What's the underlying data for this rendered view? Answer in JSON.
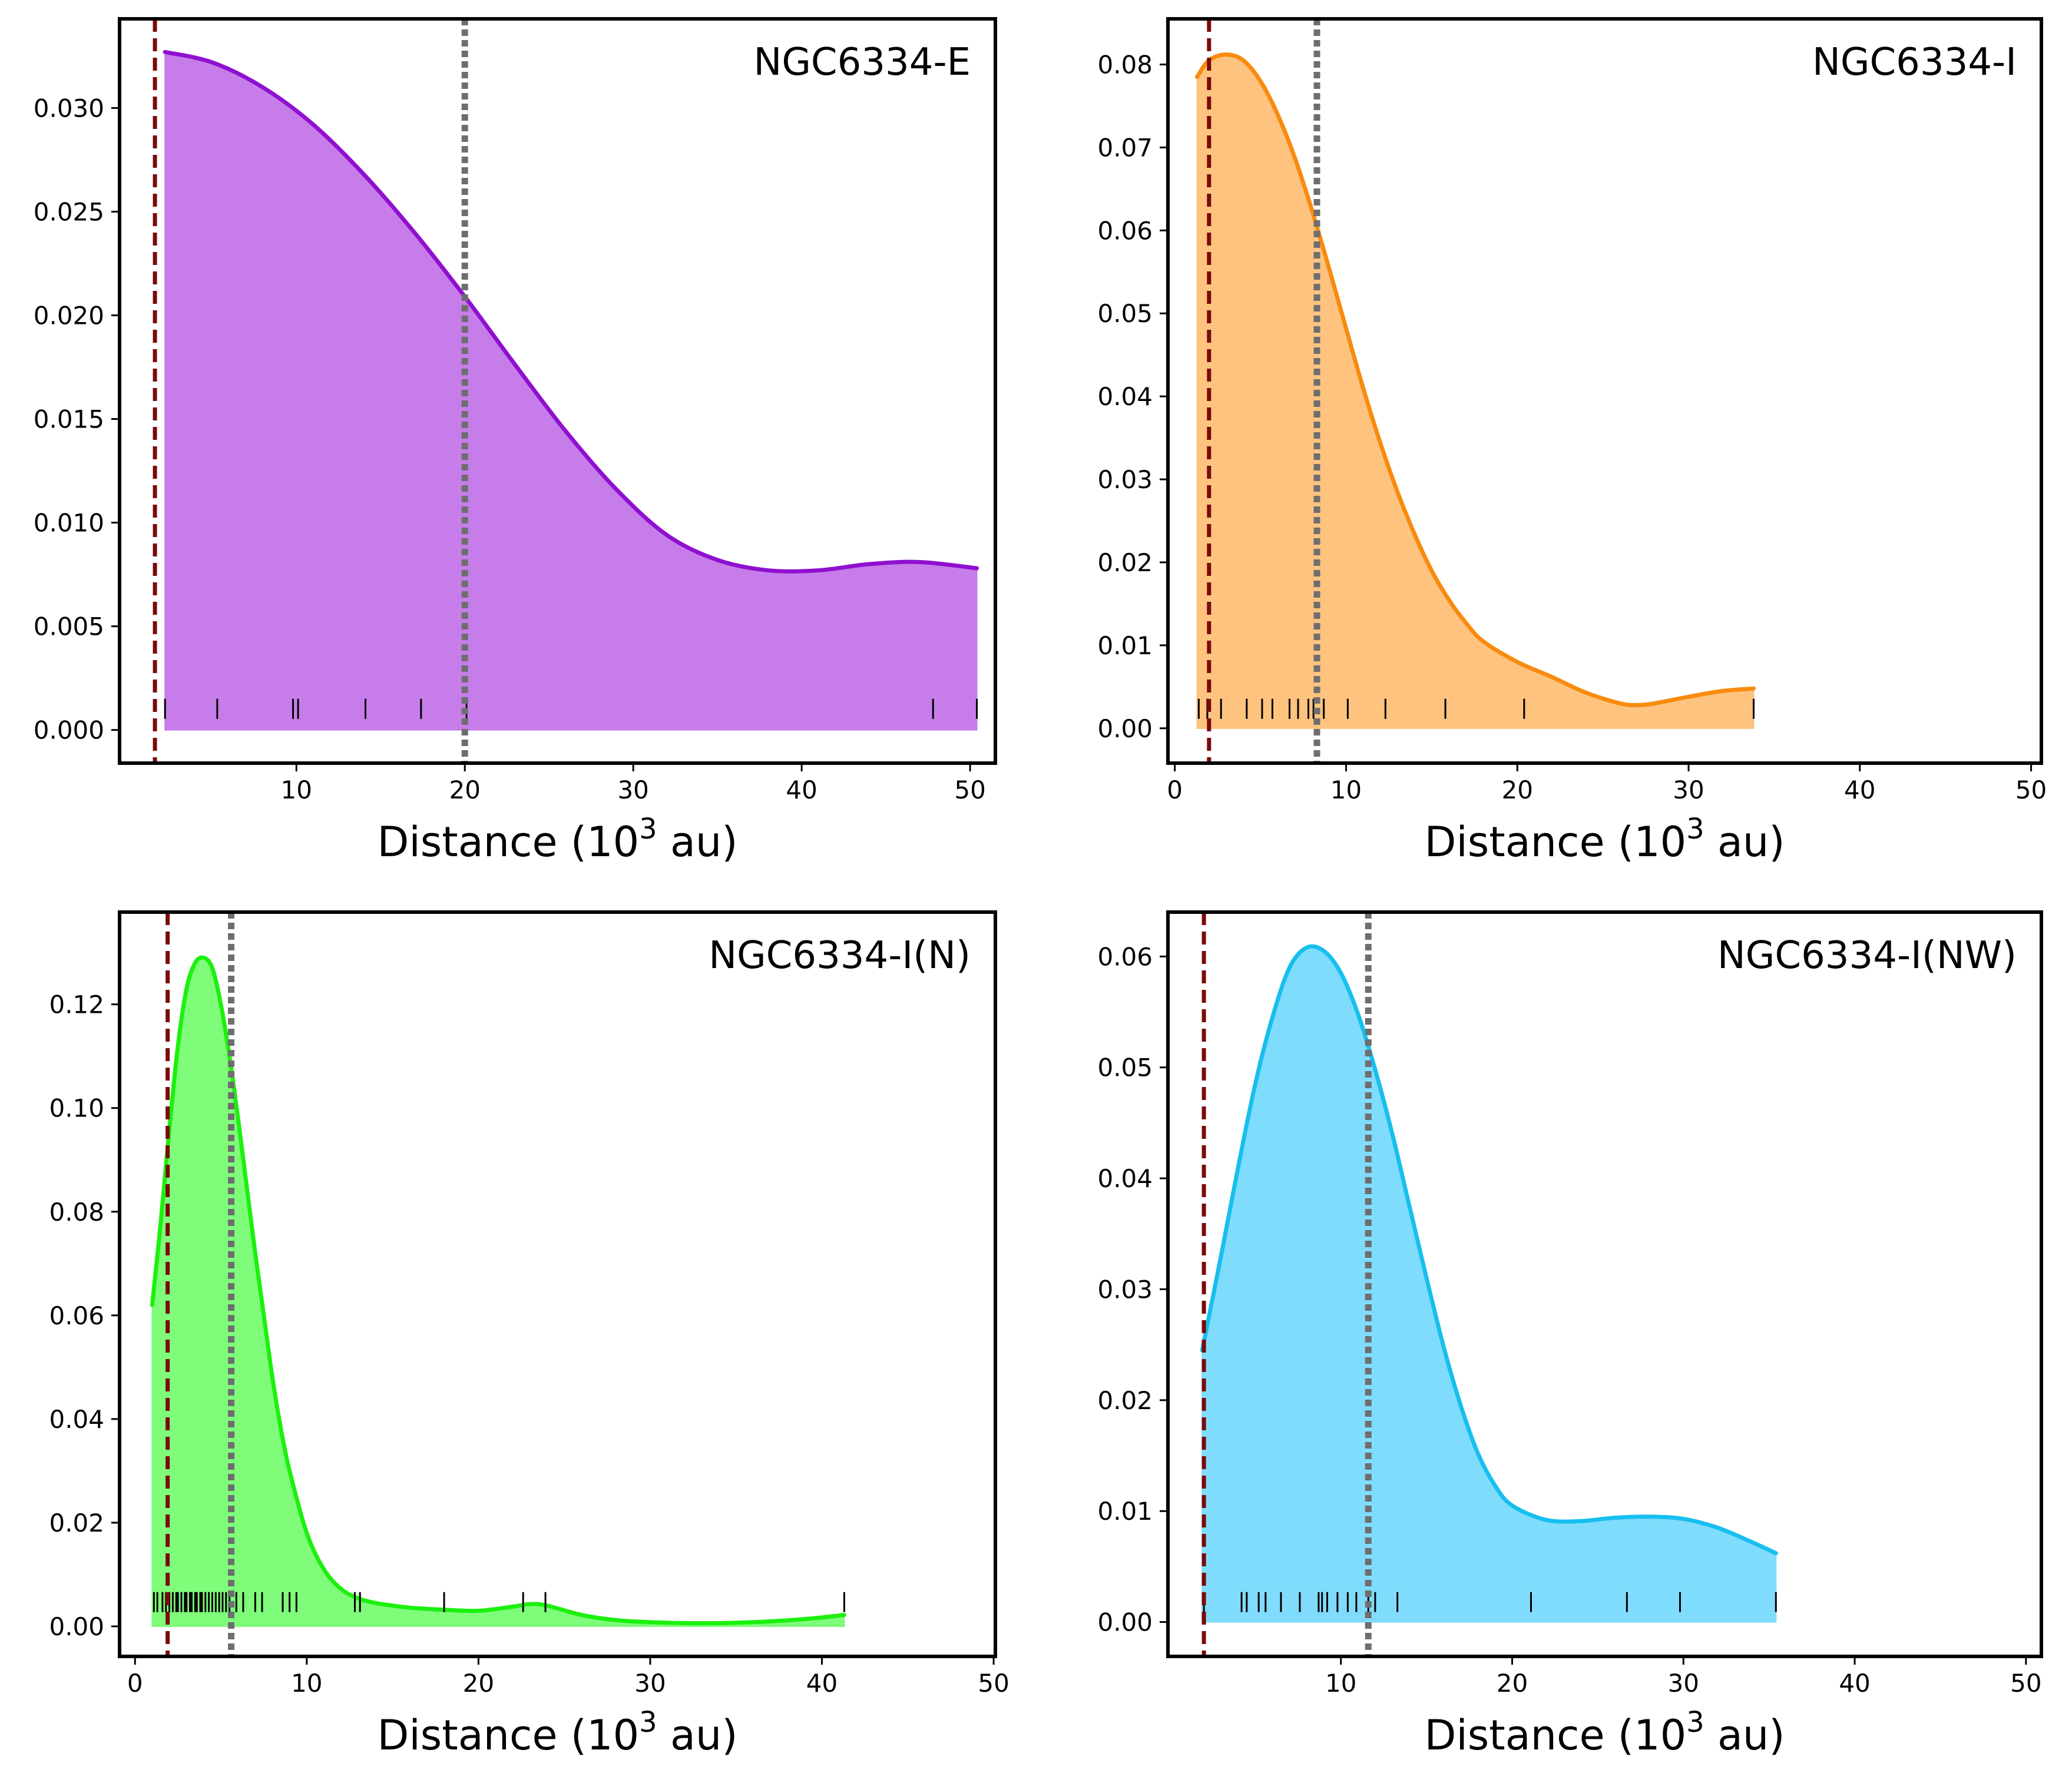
{
  "chart_data": [
    {
      "type": "area",
      "title": "NGC6334-E",
      "xlabel_text": "Distance (10",
      "xlabel_sup": "3",
      "xlabel_suffix": " au)",
      "xlim": [
        -0.5,
        51.5
      ],
      "ylim": [
        -0.0016,
        0.0343
      ],
      "xticks": [
        10,
        20,
        30,
        40,
        50
      ],
      "yticks": [
        0.0,
        0.005,
        0.01,
        0.015,
        0.02,
        0.025,
        0.03
      ],
      "ytick_labels": [
        "0.000",
        "0.005",
        "0.010",
        "0.015",
        "0.020",
        "0.025",
        "0.030"
      ],
      "xtick_labels": [
        "10",
        "20",
        "30",
        "40",
        "50"
      ],
      "color": "#8f10d0",
      "fill": "#c67de9",
      "curve": {
        "x": [
          2.2,
          5,
          8,
          11,
          14,
          17,
          20,
          23,
          26,
          29,
          32,
          35,
          38,
          41,
          44,
          47,
          50.4
        ],
        "y": [
          0.0327,
          0.0322,
          0.031,
          0.0292,
          0.0268,
          0.024,
          0.0209,
          0.0176,
          0.0144,
          0.0116,
          0.0094,
          0.0082,
          0.0077,
          0.0077,
          0.008,
          0.0081,
          0.0078
        ]
      },
      "rug": [
        2.2,
        5.3,
        9.8,
        10.1,
        14.1,
        17.4,
        20.1,
        47.8,
        50.4
      ],
      "red_line_x": 1.6,
      "gray_line_x": 20.0
    },
    {
      "type": "area",
      "title": "NGC6334-I",
      "xlabel_text": "Distance (10",
      "xlabel_sup": "3",
      "xlabel_suffix": " au)",
      "xlim": [
        -0.4,
        50.6
      ],
      "ylim": [
        -0.0042,
        0.0855
      ],
      "xticks": [
        0,
        10,
        20,
        30,
        40,
        50
      ],
      "yticks": [
        0.0,
        0.01,
        0.02,
        0.03,
        0.04,
        0.05,
        0.06,
        0.07,
        0.08
      ],
      "ytick_labels": [
        "0.00",
        "0.01",
        "0.02",
        "0.03",
        "0.04",
        "0.05",
        "0.06",
        "0.07",
        "0.08"
      ],
      "xtick_labels": [
        "0",
        "10",
        "20",
        "30",
        "40",
        "50"
      ],
      "color": "#f88b0e",
      "fill": "#fdc37f",
      "curve": {
        "x": [
          1.3,
          2,
          3,
          4,
          5,
          6,
          7,
          8,
          9,
          10,
          11,
          12,
          13,
          14,
          15,
          16,
          17,
          18,
          20,
          22,
          24,
          26,
          27,
          28,
          30,
          32,
          33.8
        ],
        "y": [
          0.0785,
          0.0805,
          0.0812,
          0.0805,
          0.078,
          0.074,
          0.0688,
          0.0625,
          0.0555,
          0.0482,
          0.041,
          0.0344,
          0.0285,
          0.0234,
          0.019,
          0.0155,
          0.0127,
          0.0105,
          0.008,
          0.0062,
          0.0043,
          0.003,
          0.0028,
          0.003,
          0.0038,
          0.0045,
          0.0048
        ]
      },
      "rug": [
        1.4,
        1.9,
        2.7,
        4.2,
        5.1,
        5.7,
        6.7,
        7.2,
        7.8,
        8.1,
        8.7,
        10.1,
        12.3,
        15.8,
        20.4,
        33.8
      ],
      "red_line_x": 2.0,
      "gray_line_x": 8.3
    },
    {
      "type": "area",
      "title": "NGC6334-I(N)",
      "xlabel_text": "Distance (10",
      "xlabel_sup": "3",
      "xlabel_suffix": " au)",
      "xlim": [
        -0.9,
        50.1
      ],
      "ylim": [
        -0.0058,
        0.1378
      ],
      "xticks": [
        0,
        10,
        20,
        30,
        40,
        50
      ],
      "yticks": [
        0.0,
        0.02,
        0.04,
        0.06,
        0.08,
        0.1,
        0.12
      ],
      "ytick_labels": [
        "0.00",
        "0.02",
        "0.04",
        "0.06",
        "0.08",
        "0.10",
        "0.12"
      ],
      "xtick_labels": [
        "0",
        "10",
        "20",
        "30",
        "40",
        "50"
      ],
      "color": "#1cf00e",
      "fill": "#7ffc7a",
      "curve": {
        "x": [
          1.0,
          1.5,
          2.0,
          2.5,
          3.0,
          3.5,
          4.0,
          4.5,
          5.0,
          5.5,
          6.0,
          6.5,
          7.0,
          7.5,
          8.0,
          8.5,
          9.0,
          10,
          11,
          12,
          13,
          14,
          15,
          16,
          18,
          20,
          22,
          23,
          24,
          26,
          28,
          30,
          33,
          36,
          39,
          41.3
        ],
        "y": [
          0.062,
          0.078,
          0.096,
          0.112,
          0.123,
          0.128,
          0.129,
          0.127,
          0.12,
          0.11,
          0.098,
          0.085,
          0.072,
          0.06,
          0.048,
          0.038,
          0.03,
          0.018,
          0.011,
          0.0072,
          0.0054,
          0.0045,
          0.004,
          0.0036,
          0.0032,
          0.003,
          0.0038,
          0.0043,
          0.004,
          0.0022,
          0.0012,
          0.0008,
          0.0006,
          0.0008,
          0.0014,
          0.0022
        ]
      },
      "rug": [
        1.1,
        1.3,
        1.6,
        1.8,
        2.0,
        2.2,
        2.4,
        2.5,
        2.7,
        2.9,
        3.0,
        3.2,
        3.3,
        3.5,
        3.6,
        3.8,
        3.9,
        4.1,
        4.3,
        4.5,
        4.7,
        4.9,
        5.1,
        5.3,
        5.5,
        5.9,
        6.3,
        7.0,
        7.4,
        8.6,
        9.0,
        9.4,
        12.8,
        13.1,
        18.0,
        22.6,
        23.9,
        41.3
      ],
      "red_line_x": 1.9,
      "gray_line_x": 5.6
    },
    {
      "type": "area",
      "title": "NGC6334-I(NW)",
      "xlabel_text": "Distance (10",
      "xlabel_sup": "3",
      "xlabel_suffix": " au)",
      "xlim": [
        -0.1,
        50.9
      ],
      "ylim": [
        -0.0031,
        0.064
      ],
      "xticks": [
        10,
        20,
        30,
        40,
        50
      ],
      "yticks": [
        0.0,
        0.01,
        0.02,
        0.03,
        0.04,
        0.05,
        0.06
      ],
      "ytick_labels": [
        "0.00",
        "0.01",
        "0.02",
        "0.03",
        "0.04",
        "0.05",
        "0.06"
      ],
      "xtick_labels": [
        "10",
        "20",
        "30",
        "40",
        "50"
      ],
      "color": "#17bfef",
      "fill": "#80dcfd",
      "curve": {
        "x": [
          1.9,
          3,
          4,
          5,
          6,
          7,
          8,
          9,
          10,
          11,
          12,
          13,
          14,
          15,
          16,
          17,
          18,
          19,
          20,
          22,
          24,
          26,
          28,
          30,
          32,
          34,
          35.4
        ],
        "y": [
          0.0245,
          0.033,
          0.041,
          0.0485,
          0.0545,
          0.059,
          0.0608,
          0.0605,
          0.0585,
          0.0548,
          0.0498,
          0.044,
          0.0375,
          0.031,
          0.0248,
          0.0195,
          0.0152,
          0.0123,
          0.0105,
          0.0092,
          0.0091,
          0.0094,
          0.0095,
          0.0093,
          0.0085,
          0.0072,
          0.0062
        ]
      },
      "rug": [
        2.0,
        4.2,
        4.5,
        5.2,
        5.6,
        6.5,
        7.6,
        8.7,
        8.9,
        9.2,
        9.8,
        10.4,
        10.9,
        11.6,
        12.0,
        13.3,
        21.1,
        26.7,
        29.8,
        35.4
      ],
      "red_line_x": 2.0,
      "gray_line_x": 11.6
    }
  ]
}
